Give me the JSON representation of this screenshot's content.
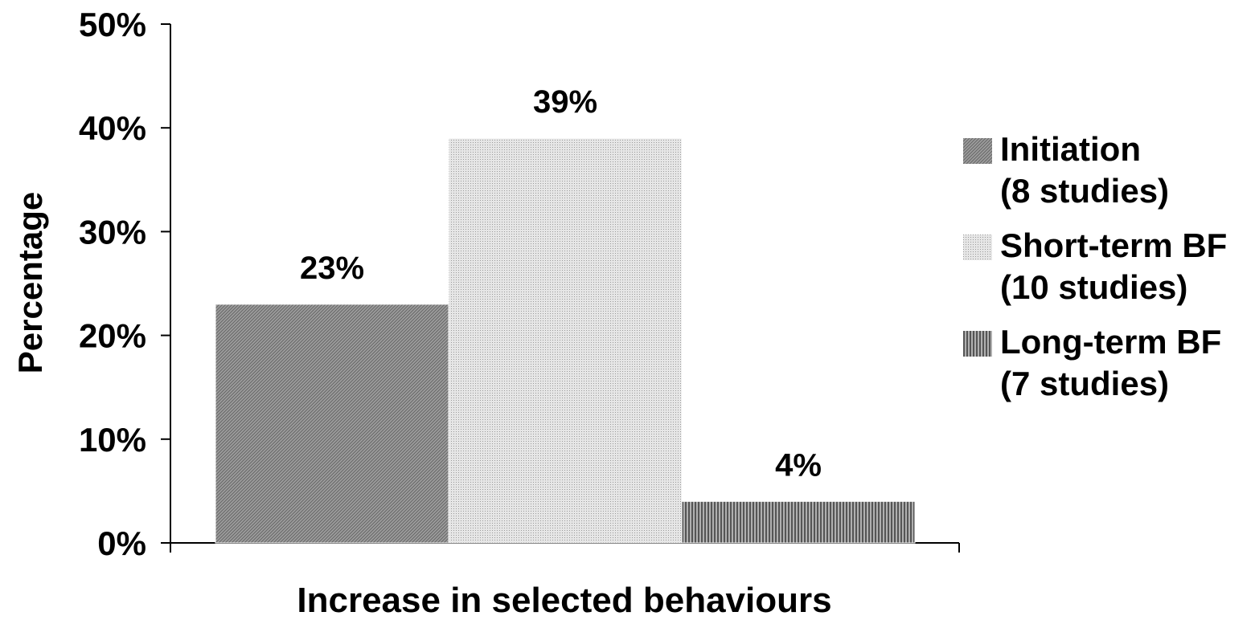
{
  "chart_data": {
    "type": "bar",
    "xlabel": "Increase in selected behaviours",
    "ylabel": "Percentage",
    "ylim": [
      0,
      50
    ],
    "yticks": [
      "0%",
      "10%",
      "20%",
      "30%",
      "40%",
      "50%"
    ],
    "grid": false,
    "legend_position": "right",
    "series": [
      {
        "name": "Initiation\n(8 studies)",
        "value": 23,
        "label": "23%",
        "color": "#8a8a8a"
      },
      {
        "name": "Short-term BF\n(10 studies)",
        "value": 39,
        "label": "39%",
        "color": "#cfcfcf"
      },
      {
        "name": "Long-term BF\n(7 studies)",
        "value": 4,
        "label": "4%",
        "color": "#6e6e6e"
      }
    ]
  }
}
